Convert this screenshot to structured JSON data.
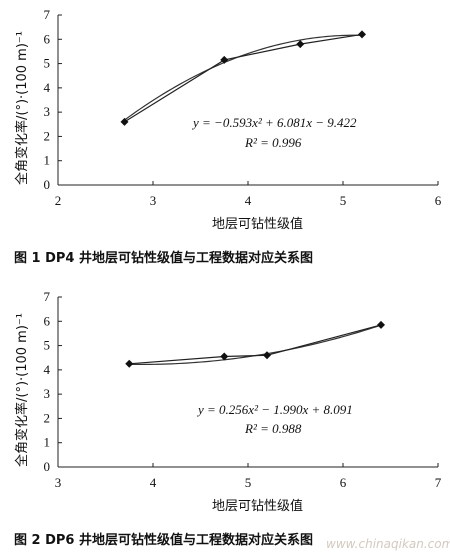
{
  "chart_data": [
    {
      "type": "scatter",
      "ylabel": "全角变化率/(°)·(100 m)⁻¹",
      "xlabel": "地层可钻性级值",
      "xlim": [
        2,
        6
      ],
      "ylim": [
        0,
        7
      ],
      "x_ticks": [
        "2",
        "3",
        "4",
        "5",
        "6"
      ],
      "y_ticks": [
        "0",
        "1",
        "2",
        "3",
        "4",
        "5",
        "6",
        "7"
      ],
      "series": [
        {
          "x": [
            2.7,
            3.75,
            4.55,
            5.2
          ],
          "y": [
            2.6,
            5.15,
            5.8,
            6.2
          ]
        }
      ],
      "trendline": {
        "type": "polynomial",
        "a": -0.593,
        "b": 6.081,
        "c": -9.422
      },
      "equation": "y = −0.593x² + 6.081x − 9.422",
      "r2": "R² = 0.996",
      "caption": "图 1    DP4 井地层可钻性级值与工程数据对应关系图"
    },
    {
      "type": "scatter",
      "ylabel": "全角变化率/(°)·(100 m)⁻¹",
      "xlabel": "地层可钻性级值",
      "xlim": [
        3,
        7
      ],
      "ylim": [
        0,
        7
      ],
      "x_ticks": [
        "3",
        "4",
        "5",
        "6",
        "7"
      ],
      "y_ticks": [
        "0",
        "1",
        "2",
        "3",
        "4",
        "5",
        "6",
        "7"
      ],
      "series": [
        {
          "x": [
            3.75,
            4.75,
            5.2,
            6.4
          ],
          "y": [
            4.25,
            4.55,
            4.6,
            5.85
          ]
        }
      ],
      "trendline": {
        "type": "polynomial",
        "a": 0.256,
        "b": -1.99,
        "c": 8.091
      },
      "equation": "y = 0.256x² − 1.990x + 8.091",
      "r2": "R² = 0.988",
      "caption": "图 2    DP6 井地层可钻性级值与工程数据对应关系图"
    }
  ],
  "watermark": "www.chinaqikan.com"
}
